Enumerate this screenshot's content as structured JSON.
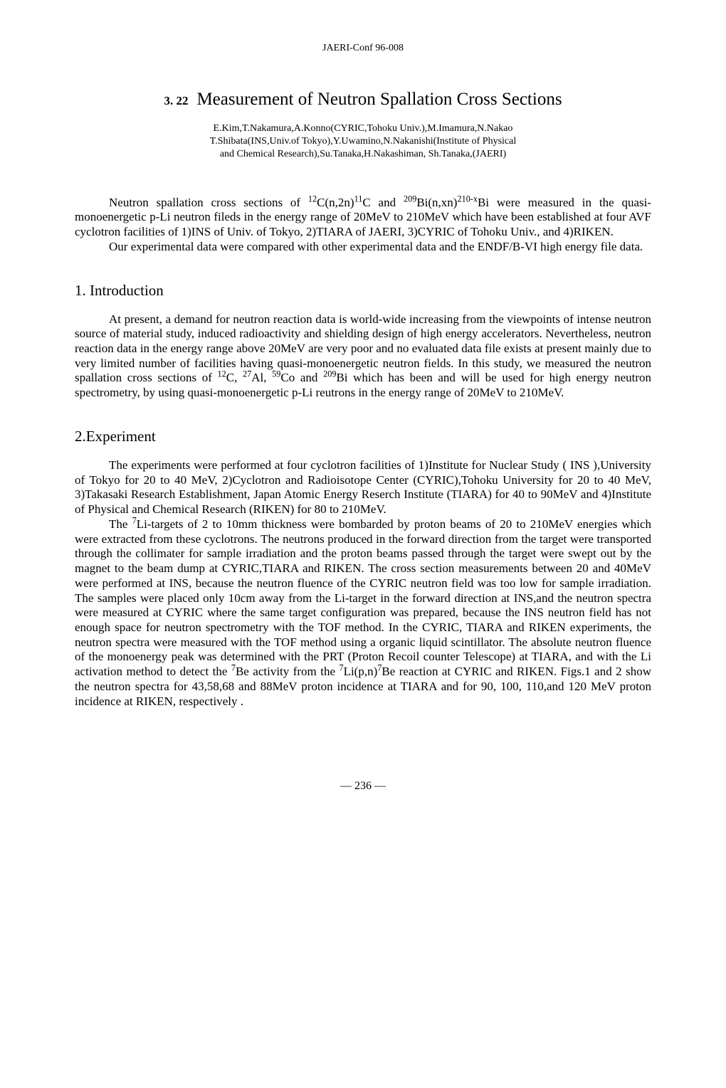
{
  "header": {
    "doc_id": "JAERI-Conf  96-008"
  },
  "title": {
    "section_number": "3. 22",
    "text": "Measurement of Neutron Spallation Cross Sections"
  },
  "authors": {
    "line1": "E.Kim,T.Nakamura,A.Konno(CYRIC,Tohoku Univ.),M.Imamura,N.Nakao",
    "line2": "T.Shibata(INS,Univ.of Tokyo),Y.Uwamino,N.Nakanishi(Institute of Physical",
    "line3": "and Chemical Research),Su.Tanaka,H.Nakashiman, Sh.Tanaka,(JAERI)"
  },
  "abstract": {
    "p1_part1": "Neutron spallation cross sections of ",
    "p1_isotope1": "12",
    "p1_part2": "C(n,2n)",
    "p1_isotope2": "11",
    "p1_part3": "C and ",
    "p1_isotope3": "209",
    "p1_part4": "Bi(n,xn)",
    "p1_isotope4": "210-x",
    "p1_part5": "Bi were measured in the quasi-monoenergetic p-Li neutron fileds in the energy range of 20MeV to 210MeV which have been established at four AVF cyclotron facilities of 1)INS of Univ. of Tokyo, 2)TIARA of JAERI, 3)CYRIC of Tohoku Univ., and 4)RIKEN.",
    "p2": "Our experimental data were compared with other experimental data and the ENDF/B-VI high energy file data."
  },
  "section1": {
    "heading": "1. Introduction",
    "p1_part1": "At present, a demand for neutron reaction data is world-wide increasing from the viewpoints of intense neutron source of material study, induced radioactivity and shielding design of high energy accelerators.  Nevertheless, neutron reaction data in the energy range above 20MeV are very poor and no evaluated data file exists at present mainly due to very limited number of facilities having quasi-monoenergetic neutron fields. In this study, we measured the neutron spallation cross sections of ",
    "p1_iso1": "12",
    "p1_part2": "C, ",
    "p1_iso2": "27",
    "p1_part3": "Al, ",
    "p1_iso3": "59",
    "p1_part4": "Co and ",
    "p1_iso4": "209",
    "p1_part5": "Bi which has been and will be used for high energy neutron spectrometry, by using quasi-monoenergetic p-Li reutrons in the energy range of 20MeV to 210MeV."
  },
  "section2": {
    "heading": "2.Experiment",
    "p1": "The experiments were performed at four cyclotron facilities of 1)Institute for Nuclear Study ( INS ),University of Tokyo for 20 to 40 MeV, 2)Cyclotron and Radioisotope Center (CYRIC),Tohoku University for 20 to 40 MeV, 3)Takasaki Research Establishment, Japan Atomic Energy Reserch Institute (TIARA) for 40 to 90MeV and 4)Institute of Physical and Chemical Research (RIKEN) for 80 to 210MeV.",
    "p2_part1": "The ",
    "p2_iso1": "7",
    "p2_part2": "Li-targets of 2 to 10mm thickness were bombarded by proton beams of 20 to 210MeV energies which were extracted from these cyclotrons.  The neutrons produced in the forward direction from the target were transported through the collimater for sample irradiation and the proton beams passed through the target were swept out by the magnet to the beam dump at CYRIC,TIARA and RIKEN.  The cross section measurements between 20 and 40MeV were performed at INS, because the neutron fluence of the CYRIC neutron field was too low for sample irradiation.  The samples were placed only 10cm away from the Li-target in the forward direction at INS,and the neutron spectra were measured at CYRIC where the same target configuration was prepared, because the INS neutron field has not enough space for neutron spectrometry with the TOF method. In the CYRIC, TIARA and RIKEN experiments, the neutron spectra were measured with the TOF method using a organic liquid scintillator. The absolute neutron fluence of the monoenergy peak was determined with the PRT (Proton Recoil counter Telescope) at TIARA, and with the Li activation method to detect the ",
    "p2_iso2": "7",
    "p2_part3": "Be activity from the ",
    "p2_iso3": "7",
    "p2_part4": "Li(p,n)",
    "p2_iso4": "7",
    "p2_part5": "Be reaction at CYRIC and RIKEN.   Figs.1 and 2 show the neutron spectra for 43,58,68 and 88MeV proton incidence at TIARA and for 90, 100, 110,and 120 MeV proton incidence at RIKEN, respectively ."
  },
  "page_number": "— 236 —"
}
